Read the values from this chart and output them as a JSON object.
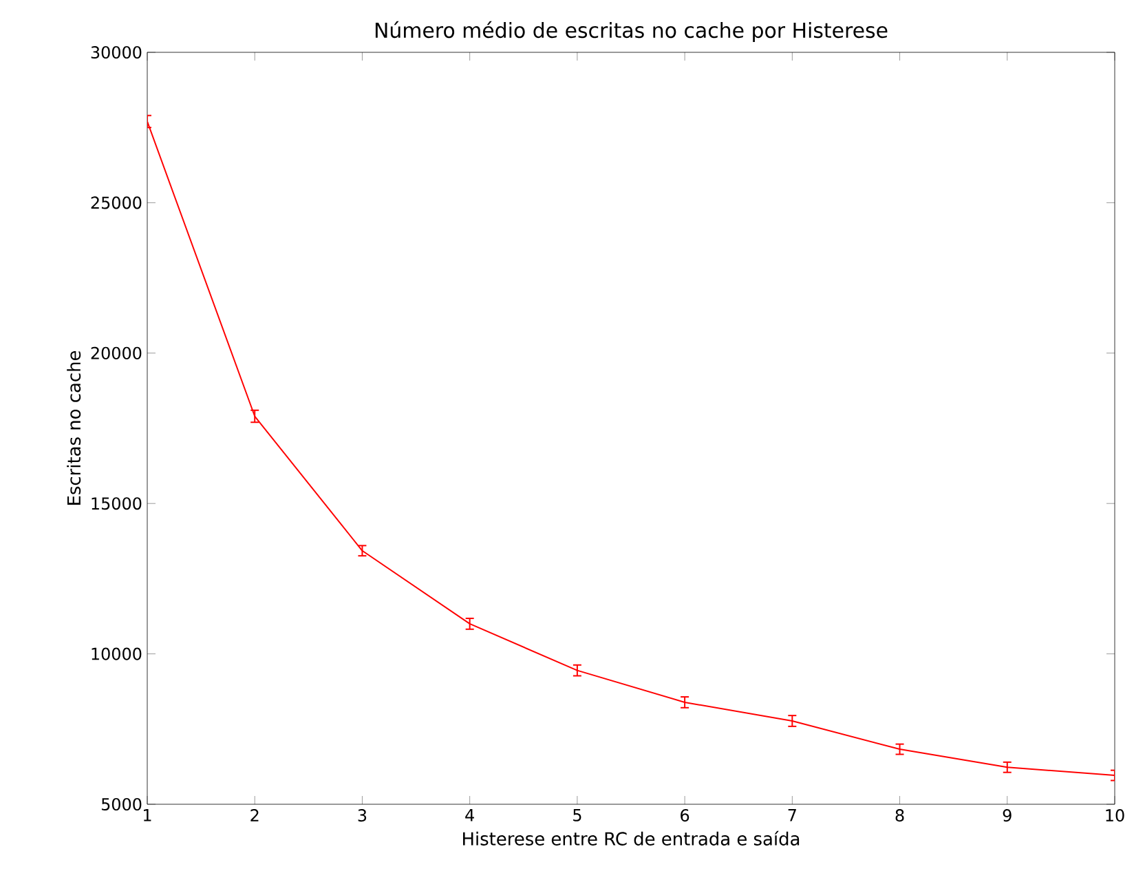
{
  "chart_data": {
    "type": "line",
    "title": "Número médio de escritas no cache por Histerese",
    "xlabel": "Histerese entre RC de entrada e saída",
    "ylabel": "Escritas no cache",
    "x": [
      1,
      2,
      3,
      4,
      5,
      6,
      7,
      8,
      9,
      10
    ],
    "series": [
      {
        "color": "#ff0000",
        "values": [
          27700,
          17900,
          13430,
          11000,
          9450,
          8390,
          7770,
          6830,
          6230,
          5960
        ],
        "errors": [
          200,
          200,
          170,
          180,
          180,
          180,
          180,
          170,
          170,
          170
        ]
      }
    ],
    "xlim": [
      1,
      10
    ],
    "xticks": [
      1,
      2,
      3,
      4,
      5,
      6,
      7,
      8,
      9,
      10
    ],
    "ylim": [
      5000,
      30000
    ],
    "yticks": [
      5000,
      10000,
      15000,
      20000,
      25000,
      30000
    ],
    "grid": false,
    "marker": "none",
    "line_style": "solid"
  }
}
